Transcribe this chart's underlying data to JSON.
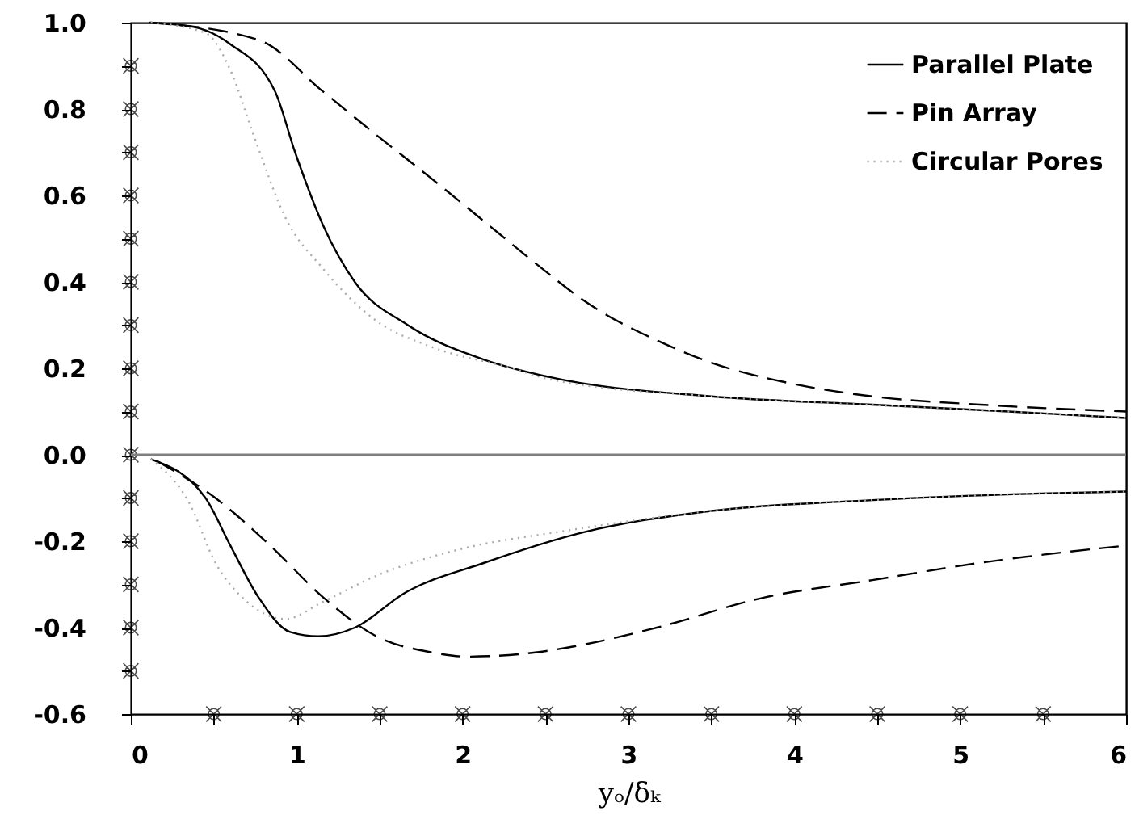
{
  "chart_data": {
    "type": "line",
    "xlabel": "yₒ/δₖ",
    "xlim": [
      0,
      6
    ],
    "ylim": [
      -0.6,
      1.0
    ],
    "xticks": [
      0,
      {
        "value": 0.5,
        "label": null
      },
      1,
      {
        "value": 1.5,
        "label": null
      },
      2,
      {
        "value": 2.5,
        "label": null
      },
      3,
      {
        "value": 3.5,
        "label": null
      },
      4,
      {
        "value": 4.5,
        "label": null
      },
      5,
      {
        "value": 5.5,
        "label": null
      },
      6
    ],
    "yticks": [
      {
        "value": -0.6,
        "label": "-0.6"
      },
      {
        "value": -0.5,
        "label": null
      },
      {
        "value": -0.4,
        "label": "-0.4"
      },
      {
        "value": -0.3,
        "label": null
      },
      {
        "value": -0.2,
        "label": "-0.2"
      },
      {
        "value": -0.1,
        "label": null
      },
      {
        "value": 0,
        "label": "0.0"
      },
      {
        "value": 0.1,
        "label": null
      },
      {
        "value": 0.2,
        "label": "0.2"
      },
      {
        "value": 0.3,
        "label": null
      },
      {
        "value": 0.4,
        "label": "0.4"
      },
      {
        "value": 0.5,
        "label": null
      },
      {
        "value": 0.6,
        "label": "0.6"
      },
      {
        "value": 0.7,
        "label": null
      },
      {
        "value": 0.8,
        "label": "0.8"
      },
      {
        "value": 0.9,
        "label": null
      },
      {
        "value": 1.0,
        "label": "1.0"
      }
    ],
    "grid": false,
    "legend": "top right",
    "marker": "none",
    "ref_lines": [
      {
        "axis": "y",
        "value": 0,
        "color": "#808080"
      }
    ],
    "series": [
      {
        "name": "Parallel Plate",
        "color": "#000000",
        "line_style": "solid",
        "x": [
          0.11,
          0.38,
          0.6,
          0.87,
          0.99,
          1.16,
          1.35,
          1.67,
          2.13,
          2.52,
          3.5,
          4.47,
          5.44,
          6
        ],
        "values": [
          1.0,
          0.99,
          0.95,
          0.84,
          0.7,
          0.53,
          0.4,
          0.3,
          0.22,
          0.18,
          0.135,
          0.116,
          0.097,
          0.085
        ]
      },
      {
        "name": "Pin Array",
        "color": "#000000",
        "line_style": "dashed",
        "x": [
          0.12,
          0.77,
          1.16,
          1.48,
          1.81,
          2.13,
          2.45,
          2.72,
          2.84,
          3.17,
          3.5,
          3.98,
          4.47,
          5.12,
          6
        ],
        "values": [
          1.0,
          0.96,
          0.84,
          0.74,
          0.64,
          0.54,
          0.44,
          0.36,
          0.33,
          0.265,
          0.213,
          0.165,
          0.135,
          0.116,
          0.1
        ]
      },
      {
        "name": "Circular Pores",
        "color": "#aaaaaa",
        "line_style": "dotted",
        "x": [
          0.12,
          0.45,
          0.6,
          0.74,
          0.93,
          1.16,
          1.48,
          1.81,
          2.3,
          2.52,
          3.5,
          4.47,
          5.44,
          6
        ],
        "values": [
          1.0,
          0.976,
          0.89,
          0.74,
          0.55,
          0.43,
          0.31,
          0.25,
          0.2,
          0.175,
          0.135,
          0.115,
          0.097,
          0.085
        ]
      },
      {
        "color": "#000000",
        "line_style": "solid",
        "x": [
          0.12,
          0.45,
          0.6,
          0.77,
          0.96,
          1.13,
          1.35,
          1.65,
          2.13,
          2.72,
          3.5,
          4.47,
          5.44,
          6
        ],
        "values": [
          -0.01,
          -0.1,
          -0.21,
          -0.33,
          -0.41,
          -0.42,
          -0.4,
          -0.32,
          -0.25,
          -0.18,
          -0.13,
          -0.105,
          -0.09,
          -0.085
        ]
      },
      {
        "color": "#000000",
        "line_style": "dashed",
        "x": [
          0.16,
          0.51,
          0.84,
          1.16,
          1.48,
          1.81,
          2.03,
          2.45,
          2.72,
          3.17,
          3.82,
          4.47,
          5.12,
          6
        ],
        "values": [
          -0.015,
          -0.1,
          -0.21,
          -0.33,
          -0.42,
          -0.457,
          -0.467,
          -0.457,
          -0.44,
          -0.4,
          -0.33,
          -0.29,
          -0.25,
          -0.21
        ]
      },
      {
        "color": "#aaaaaa",
        "line_style": "dotted",
        "x": [
          0.12,
          0.35,
          0.51,
          0.7,
          0.93,
          1.16,
          1.48,
          1.97,
          2.62,
          3.5,
          4.47,
          5.44,
          6
        ],
        "values": [
          -0.01,
          -0.11,
          -0.25,
          -0.34,
          -0.38,
          -0.34,
          -0.28,
          -0.22,
          -0.176,
          -0.13,
          -0.105,
          -0.09,
          -0.085
        ]
      }
    ]
  }
}
